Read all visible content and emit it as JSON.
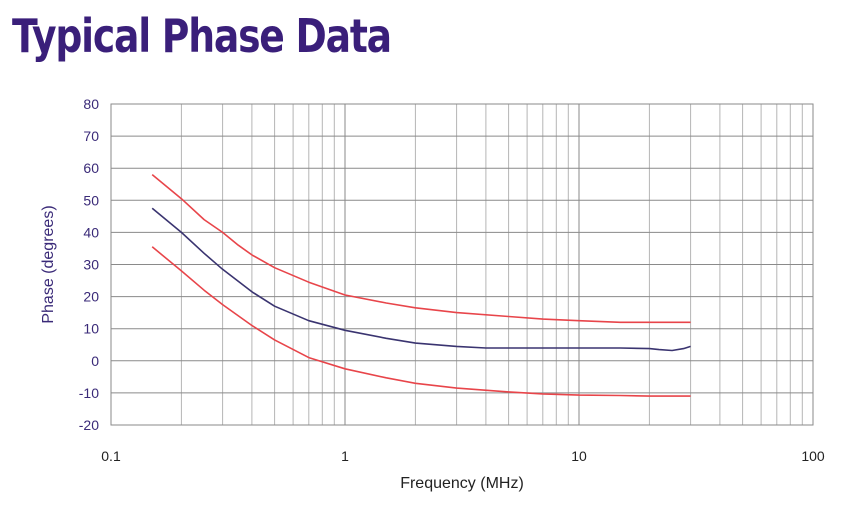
{
  "title": "Typical Phase Data",
  "chart_data": {
    "type": "line",
    "title": "Typical Phase Data",
    "xlabel": "Frequency (MHz)",
    "ylabel": "Phase (degrees)",
    "xscale": "log",
    "xlim": [
      0.1,
      100
    ],
    "ylim": [
      -20,
      80
    ],
    "x_ticks": [
      0.1,
      1,
      10,
      100
    ],
    "x_tick_labels": [
      "0.1",
      "1",
      "10",
      "100"
    ],
    "y_ticks": [
      -20,
      -10,
      0,
      10,
      20,
      30,
      40,
      50,
      60,
      70,
      80
    ],
    "y_tick_labels": [
      "-20",
      "-10",
      "0",
      "10",
      "20",
      "30",
      "40",
      "50",
      "60",
      "70",
      "80"
    ],
    "grid": true,
    "series": [
      {
        "color": "#e8454a",
        "x": [
          0.15,
          0.2,
          0.25,
          0.3,
          0.35,
          0.4,
          0.5,
          0.7,
          1,
          1.5,
          2,
          3,
          5,
          7,
          10,
          15,
          20,
          30
        ],
        "y": [
          58,
          50.5,
          44,
          40,
          36,
          33,
          29,
          24.5,
          20.5,
          18,
          16.5,
          15,
          13.8,
          13,
          12.5,
          12,
          12,
          12
        ]
      },
      {
        "color": "#3a3470",
        "x": [
          0.15,
          0.2,
          0.25,
          0.3,
          0.4,
          0.5,
          0.7,
          1,
          1.5,
          2,
          3,
          4,
          5,
          7,
          10,
          15,
          20,
          22,
          25,
          28,
          30
        ],
        "y": [
          47.5,
          40,
          33.5,
          28.5,
          21.5,
          17,
          12.5,
          9.5,
          7,
          5.5,
          4.5,
          4,
          4,
          4,
          4,
          4,
          3.8,
          3.5,
          3.2,
          3.8,
          4.5
        ]
      },
      {
        "color": "#e8454a",
        "x": [
          0.15,
          0.2,
          0.25,
          0.3,
          0.4,
          0.5,
          0.7,
          1,
          1.5,
          2,
          3,
          5,
          7,
          10,
          15,
          20,
          30
        ],
        "y": [
          35.5,
          28,
          22,
          17.5,
          11,
          6.5,
          1,
          -2.5,
          -5.3,
          -7,
          -8.5,
          -9.7,
          -10.3,
          -10.7,
          -10.8,
          -11,
          -11
        ]
      }
    ]
  }
}
